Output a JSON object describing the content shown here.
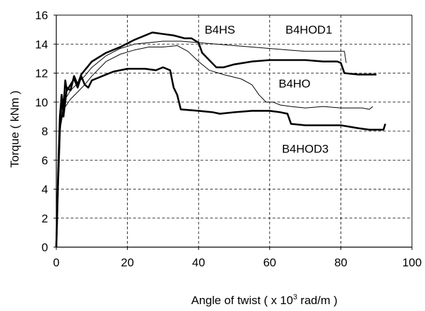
{
  "chart_data": {
    "type": "line",
    "xlabel_prefix": "Angle of twist ( x 10",
    "xlabel_exp": "3",
    "xlabel_suffix": " rad/m )",
    "ylabel": "Torque ( kNm )",
    "xlim": [
      0,
      100
    ],
    "ylim": [
      0,
      16
    ],
    "xticks": [
      "0",
      "20",
      "40",
      "60",
      "80",
      "100"
    ],
    "yticks": [
      "0",
      "2",
      "4",
      "6",
      "8",
      "10",
      "12",
      "14",
      "16"
    ],
    "grid": true,
    "series": [
      {
        "name": "B4HS",
        "stroke": "#000000",
        "weight": "heavy",
        "points": [
          [
            0,
            0
          ],
          [
            0.5,
            4.5
          ],
          [
            1,
            8
          ],
          [
            1.5,
            10.5
          ],
          [
            2,
            9
          ],
          [
            3,
            11
          ],
          [
            4,
            10.8
          ],
          [
            5,
            11.8
          ],
          [
            6,
            11.2
          ],
          [
            7,
            11.9
          ],
          [
            8,
            12.2
          ],
          [
            10,
            12.8
          ],
          [
            14,
            13.4
          ],
          [
            18,
            13.8
          ],
          [
            22,
            14.3
          ],
          [
            25,
            14.6
          ],
          [
            27,
            14.8
          ],
          [
            30,
            14.7
          ],
          [
            33,
            14.6
          ],
          [
            36,
            14.4
          ],
          [
            38,
            14.4
          ],
          [
            40,
            14.1
          ],
          [
            41,
            13.4
          ],
          [
            43,
            12.9
          ],
          [
            45,
            12.4
          ],
          [
            47,
            12.4
          ],
          [
            50,
            12.6
          ],
          [
            55,
            12.8
          ],
          [
            60,
            12.9
          ],
          [
            65,
            12.9
          ],
          [
            70,
            12.9
          ],
          [
            75,
            12.8
          ],
          [
            79,
            12.8
          ],
          [
            80,
            12.7
          ],
          [
            81,
            12.0
          ],
          [
            85,
            11.9
          ],
          [
            88,
            11.9
          ],
          [
            90,
            11.9
          ]
        ]
      },
      {
        "name": "B4HOD1",
        "stroke": "#000000",
        "weight": "thin",
        "points": [
          [
            0,
            0
          ],
          [
            0.5,
            4
          ],
          [
            1,
            8
          ],
          [
            2,
            10
          ],
          [
            4,
            10.8
          ],
          [
            6,
            11.3
          ],
          [
            8,
            11.8
          ],
          [
            10,
            12.4
          ],
          [
            14,
            13.2
          ],
          [
            18,
            13.7
          ],
          [
            22,
            14.0
          ],
          [
            26,
            14.1
          ],
          [
            30,
            14.2
          ],
          [
            35,
            14.2
          ],
          [
            40,
            14.1
          ],
          [
            45,
            14.0
          ],
          [
            50,
            13.9
          ],
          [
            55,
            13.8
          ],
          [
            60,
            13.7
          ],
          [
            65,
            13.6
          ],
          [
            70,
            13.5
          ],
          [
            75,
            13.5
          ],
          [
            79,
            13.5
          ],
          [
            81,
            13.5
          ],
          [
            81.5,
            12.7
          ]
        ]
      },
      {
        "name": "B4HO",
        "stroke": "#000000",
        "weight": "thin",
        "points": [
          [
            0,
            0
          ],
          [
            0.5,
            4
          ],
          [
            1,
            8
          ],
          [
            2,
            9.5
          ],
          [
            4,
            10.2
          ],
          [
            6,
            10.7
          ],
          [
            8,
            11.2
          ],
          [
            10,
            11.8
          ],
          [
            14,
            12.8
          ],
          [
            18,
            13.3
          ],
          [
            22,
            13.6
          ],
          [
            26,
            13.8
          ],
          [
            30,
            13.8
          ],
          [
            34,
            13.9
          ],
          [
            37,
            13.5
          ],
          [
            40,
            12.8
          ],
          [
            43,
            12.2
          ],
          [
            47,
            11.9
          ],
          [
            52,
            11.6
          ],
          [
            55,
            11.2
          ],
          [
            57,
            10.5
          ],
          [
            59,
            10.0
          ],
          [
            61,
            10.0
          ],
          [
            63,
            9.8
          ],
          [
            66,
            9.7
          ],
          [
            70,
            9.6
          ],
          [
            75,
            9.7
          ],
          [
            80,
            9.6
          ],
          [
            86,
            9.6
          ],
          [
            88,
            9.5
          ],
          [
            89,
            9.7
          ]
        ]
      },
      {
        "name": "B4HOD3",
        "stroke": "#000000",
        "weight": "heavy",
        "points": [
          [
            0,
            0
          ],
          [
            0.5,
            5
          ],
          [
            1,
            9
          ],
          [
            1.5,
            10.5
          ],
          [
            2,
            9.5
          ],
          [
            2.5,
            11.5
          ],
          [
            3,
            10.8
          ],
          [
            4,
            11.2
          ],
          [
            5,
            11.6
          ],
          [
            6,
            11.0
          ],
          [
            7,
            11.8
          ],
          [
            8,
            11.2
          ],
          [
            9,
            11.0
          ],
          [
            10,
            11.5
          ],
          [
            13,
            11.8
          ],
          [
            16,
            12.1
          ],
          [
            20,
            12.3
          ],
          [
            25,
            12.3
          ],
          [
            28,
            12.2
          ],
          [
            30,
            12.4
          ],
          [
            32,
            12.2
          ],
          [
            33,
            11.0
          ],
          [
            34,
            10.5
          ],
          [
            35,
            9.5
          ],
          [
            40,
            9.4
          ],
          [
            44,
            9.3
          ],
          [
            46,
            9.2
          ],
          [
            50,
            9.3
          ],
          [
            55,
            9.4
          ],
          [
            60,
            9.4
          ],
          [
            63,
            9.3
          ],
          [
            65,
            9.2
          ],
          [
            66,
            8.5
          ],
          [
            70,
            8.4
          ],
          [
            75,
            8.4
          ],
          [
            80,
            8.4
          ],
          [
            85,
            8.2
          ],
          [
            88,
            8.1
          ],
          [
            90,
            8.1
          ],
          [
            92,
            8.1
          ],
          [
            92.5,
            8.5
          ]
        ]
      }
    ],
    "annotations": [
      {
        "text": "B4HS",
        "x": 46,
        "y": 15.0
      },
      {
        "text": "B4HOD1",
        "x": 71,
        "y": 15.0
      },
      {
        "text": "B4HO",
        "x": 67,
        "y": 11.3
      },
      {
        "text": "B4HOD3",
        "x": 70,
        "y": 6.8
      }
    ]
  }
}
